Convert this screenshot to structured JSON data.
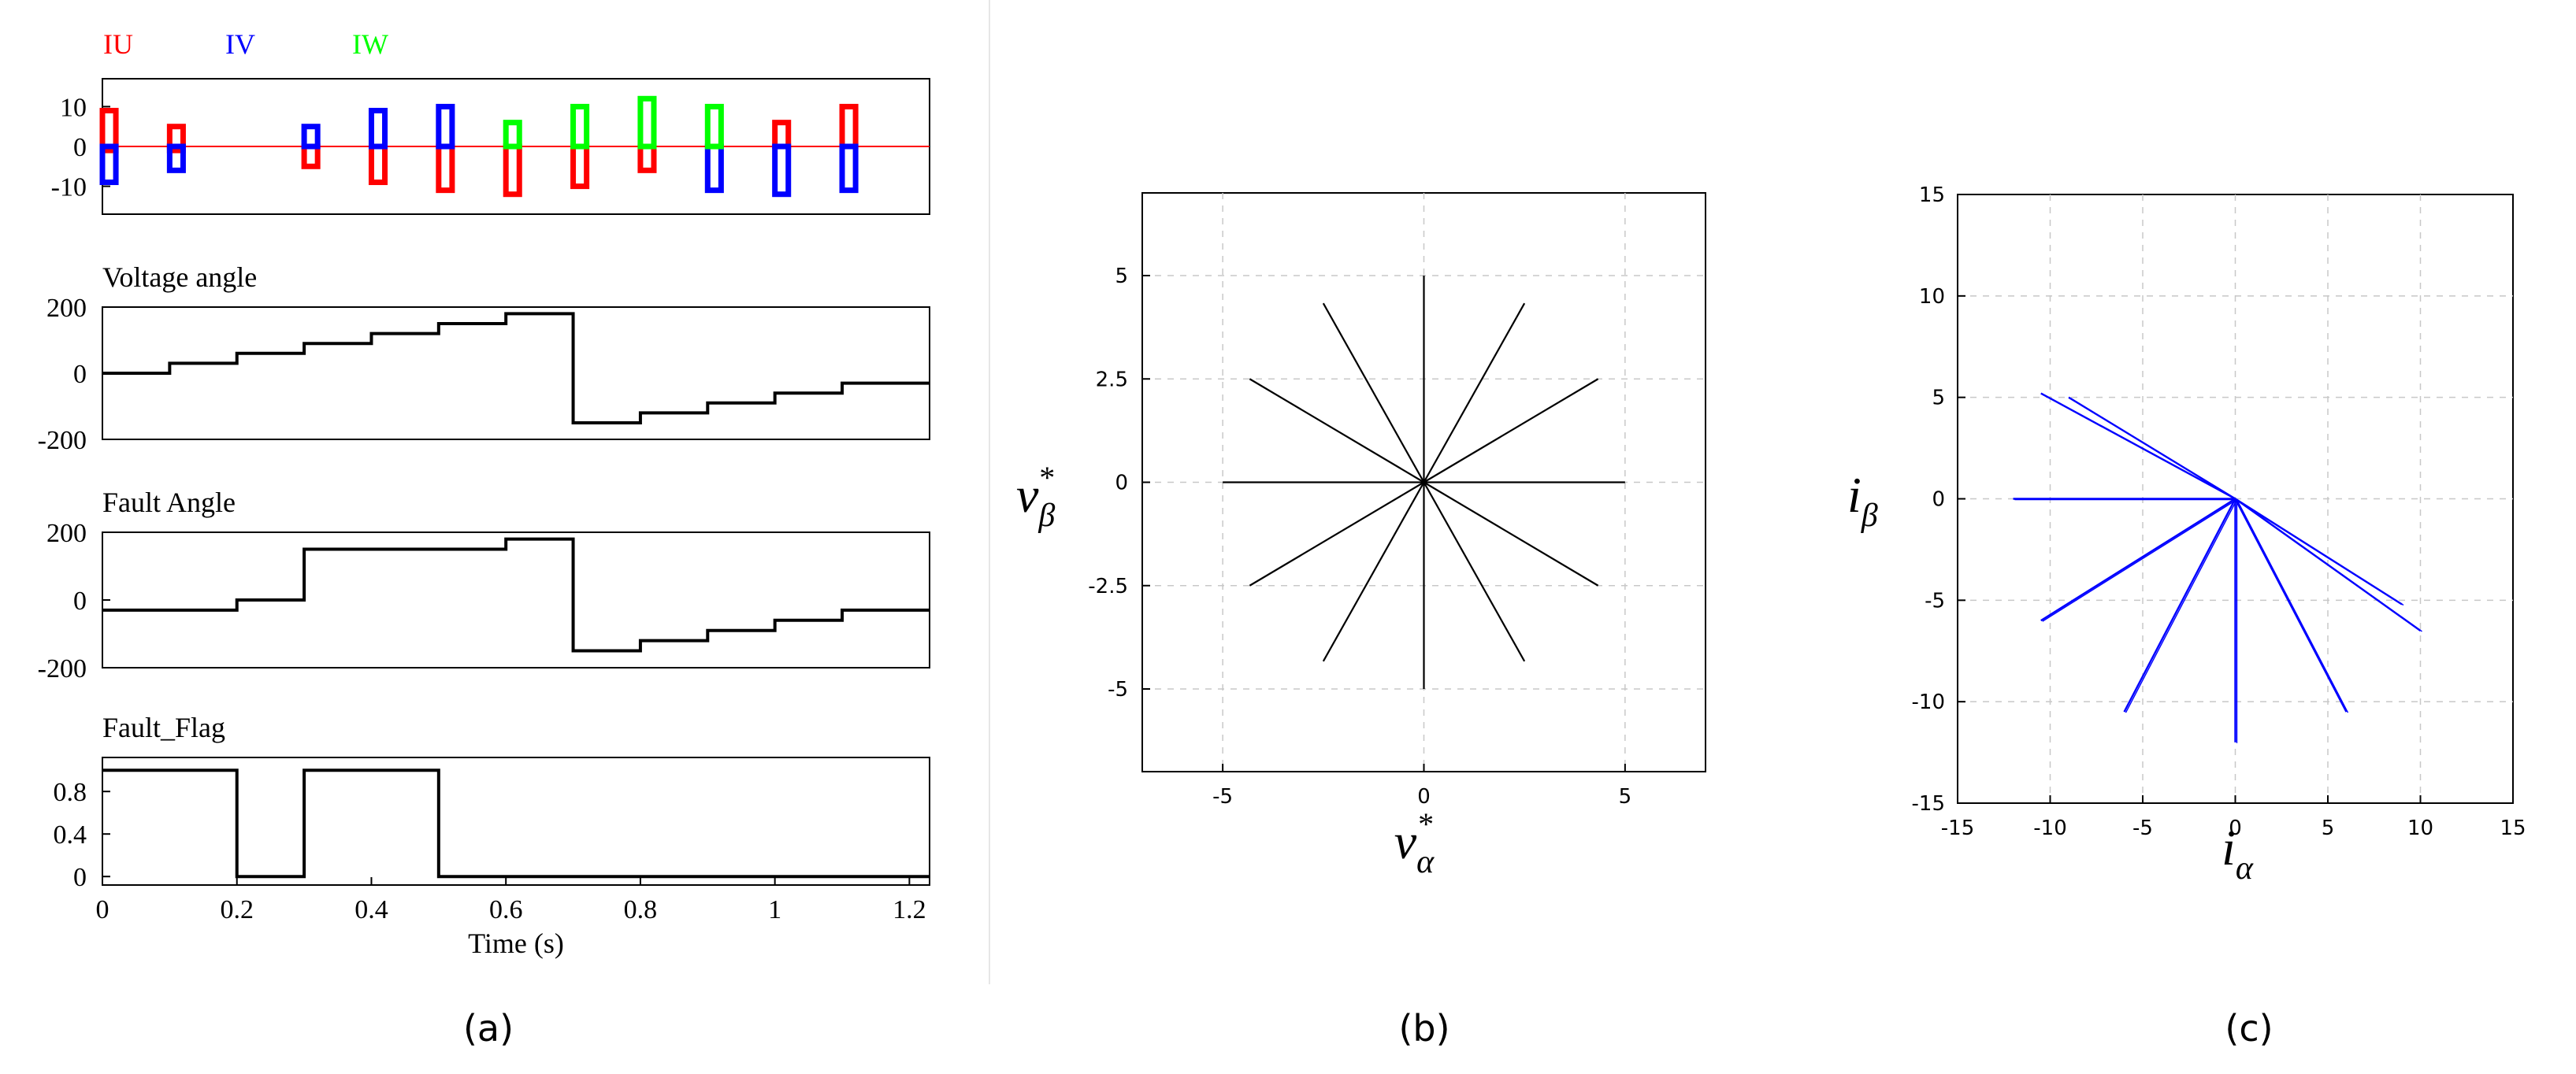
{
  "colors": {
    "iu": "#ff0000",
    "iv": "#0000ff",
    "iw": "#00ff00",
    "trace": "#000000",
    "scatter": "#0000ff",
    "grid": "#c8c8c8"
  },
  "chart_data": [
    {
      "panel": "(a)",
      "type": "line",
      "title": "",
      "legend": [
        "IU",
        "IV",
        "IW"
      ],
      "xlabel": "Time (s)",
      "xlim": [
        0,
        1.23
      ],
      "xticks": [
        "0",
        "0.2",
        "0.4",
        "0.6",
        "0.8",
        "1",
        "1.2"
      ],
      "subplots": [
        {
          "title": "",
          "ylim": [
            -17,
            17
          ],
          "yticks": [
            "10",
            "0",
            "-10"
          ],
          "series": [
            {
              "name": "IU",
              "pulses": [
                [
                  0.0,
                  0.02,
                  9,
                  -1
                ],
                [
                  0.1,
                  0.12,
                  5,
                  -1
                ],
                [
                  0.3,
                  0.32,
                  0,
                  -5
                ],
                [
                  0.4,
                  0.42,
                  0,
                  -9
                ],
                [
                  0.5,
                  0.52,
                  0,
                  -11
                ],
                [
                  0.6,
                  0.62,
                  0,
                  -12
                ],
                [
                  0.7,
                  0.72,
                  0,
                  -10
                ],
                [
                  0.8,
                  0.82,
                  0,
                  -6
                ],
                [
                  1.0,
                  1.02,
                  6,
                  0
                ],
                [
                  1.1,
                  1.12,
                  10,
                  0
                ]
              ]
            },
            {
              "name": "IV",
              "pulses": [
                [
                  0.0,
                  0.02,
                  0,
                  -9
                ],
                [
                  0.1,
                  0.12,
                  0,
                  -6
                ],
                [
                  0.3,
                  0.32,
                  5,
                  0
                ],
                [
                  0.4,
                  0.42,
                  9,
                  0
                ],
                [
                  0.5,
                  0.52,
                  10,
                  0
                ],
                [
                  0.9,
                  0.92,
                  0,
                  -11
                ],
                [
                  1.0,
                  1.02,
                  0,
                  -12
                ],
                [
                  1.1,
                  1.12,
                  0,
                  -11
                ]
              ]
            },
            {
              "name": "IW",
              "pulses": [
                [
                  0.6,
                  0.62,
                  6,
                  0
                ],
                [
                  0.7,
                  0.72,
                  10,
                  0
                ],
                [
                  0.8,
                  0.82,
                  12,
                  0
                ],
                [
                  0.9,
                  0.92,
                  10,
                  0
                ]
              ]
            }
          ]
        },
        {
          "title": "Voltage angle",
          "ylim": [
            -200,
            200
          ],
          "yticks": [
            "200",
            "0",
            "-200"
          ],
          "x": [
            0,
            0.1,
            0.2,
            0.3,
            0.4,
            0.5,
            0.6,
            0.7,
            0.8,
            0.9,
            1.0,
            1.1,
            1.2
          ],
          "values": [
            0,
            30,
            60,
            90,
            120,
            150,
            180,
            -150,
            -120,
            -90,
            -60,
            -30,
            -30
          ]
        },
        {
          "title": "Fault Angle",
          "ylim": [
            -200,
            200
          ],
          "yticks": [
            "200",
            "0",
            "-200"
          ],
          "x": [
            0,
            0.2,
            0.3,
            0.6,
            0.7,
            0.8,
            0.9,
            1.0,
            1.1,
            1.2
          ],
          "values": [
            -30,
            0,
            150,
            180,
            -150,
            -120,
            -90,
            -60,
            -30,
            -30
          ]
        },
        {
          "title": "Fault_Flag",
          "ylim": [
            -0.08,
            1.12
          ],
          "yticks": [
            "0.8",
            "0.4",
            "0"
          ],
          "x": [
            0,
            0.2,
            0.3,
            0.5,
            1.23
          ],
          "values": [
            1,
            0,
            1,
            0,
            0
          ]
        }
      ]
    },
    {
      "panel": "(b)",
      "type": "line",
      "title": "",
      "xlabel_main": "v",
      "xlabel_sub": "α",
      "xlabel_sup": "*",
      "ylabel_main": "v",
      "ylabel_sub": "β",
      "ylabel_sup": "*",
      "xlim": [
        -7,
        7
      ],
      "ylim": [
        -7,
        7
      ],
      "xticks": [
        "-5",
        "0",
        "5"
      ],
      "yticks": [
        "5",
        "2.5",
        "0",
        "-2.5",
        "-5"
      ],
      "grid": true,
      "radius": 5,
      "angles_deg": [
        0,
        30,
        60,
        90,
        120,
        150,
        180,
        210,
        240,
        270,
        300,
        330
      ]
    },
    {
      "panel": "(c)",
      "type": "line",
      "title": "",
      "xlabel_main": "i",
      "xlabel_sub": "α",
      "ylabel_main": "i",
      "ylabel_sub": "β",
      "xlim": [
        -15,
        15
      ],
      "ylim": [
        -15,
        15
      ],
      "xticks": [
        "-15",
        "-10",
        "-5",
        "0",
        "5",
        "10",
        "15"
      ],
      "yticks": [
        "15",
        "10",
        "5",
        "0",
        "-5",
        "-10",
        "-15"
      ],
      "grid": true,
      "segments": [
        [
          -12,
          0
        ],
        [
          -10.5,
          5.2
        ],
        [
          -9,
          5
        ],
        [
          -10.5,
          -6
        ],
        [
          -6,
          -10.5
        ],
        [
          0,
          -12
        ],
        [
          6,
          -10.5
        ],
        [
          9,
          -5.2
        ],
        [
          10,
          -6.5
        ]
      ]
    }
  ],
  "captions": [
    "(a)",
    "(b)",
    "(c)"
  ]
}
